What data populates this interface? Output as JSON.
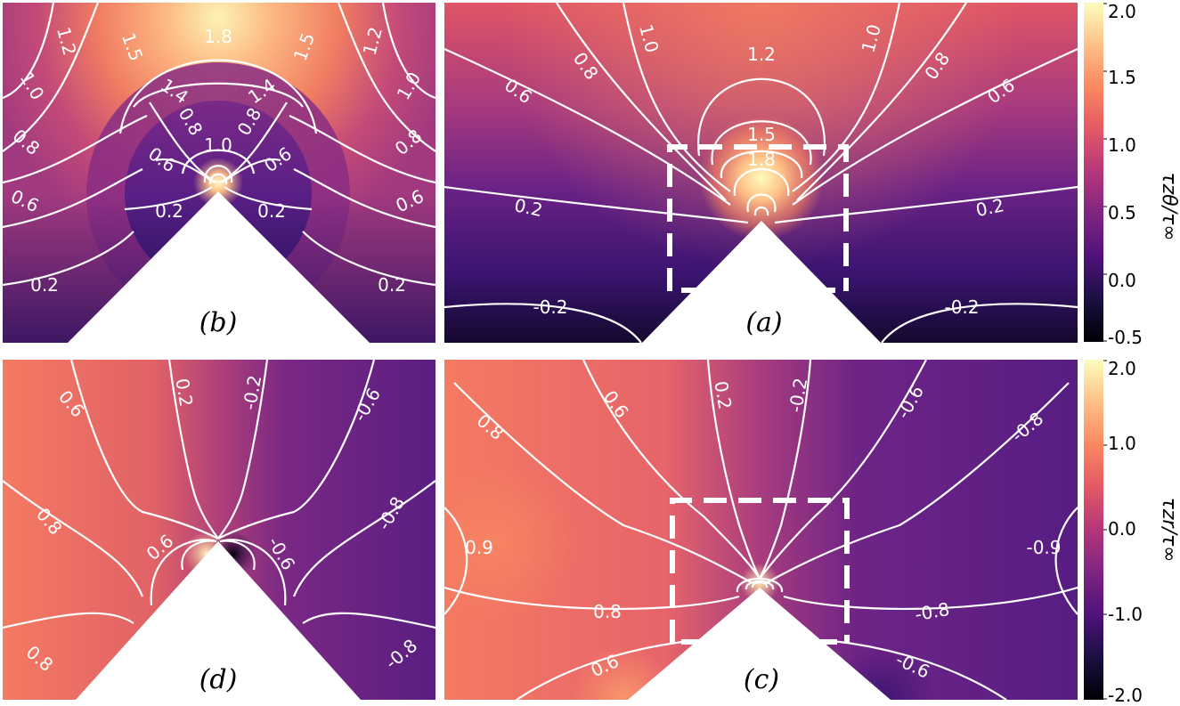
{
  "chart_data": [
    {
      "type": "heatmap",
      "panel_label": "(b)",
      "quantity": "tau_z_theta / tau_inf",
      "colormap": "magma",
      "value_range": [
        -0.5,
        2.0
      ],
      "geometry": "wedge apex, zoomed view",
      "contour_labels": [
        "1.8",
        "1.5",
        "1.5",
        "1.2",
        "1.2",
        "1.0",
        "1.0",
        "1.4",
        "1.4",
        "0.8",
        "0.8",
        "0.8",
        "0.8",
        "1.0",
        "0.6",
        "0.6",
        "0.6",
        "0.6",
        "0.2",
        "0.2",
        "0.2",
        "0.2"
      ]
    },
    {
      "type": "heatmap",
      "panel_label": "(a)",
      "quantity": "tau_z_theta / tau_inf",
      "colormap": "magma",
      "value_range": [
        -0.5,
        2.0
      ],
      "geometry": "wedge apex, full view with inset box",
      "contour_labels": [
        "1.0",
        "1.0",
        "0.8",
        "0.8",
        "0.6",
        "0.6",
        "1.2",
        "1.5",
        "1.8",
        "0.2",
        "0.2",
        "-0.2",
        "-0.2"
      ]
    },
    {
      "type": "heatmap",
      "panel_label": "(d)",
      "quantity": "tau_z_r / tau_inf",
      "colormap": "magma",
      "value_range": [
        -2.0,
        2.0
      ],
      "geometry": "wedge apex, zoomed view",
      "contour_labels": [
        "0.6",
        "0.2",
        "-0.2",
        "-0.6",
        "0.8",
        "-0.8",
        "0.6",
        "-0.6",
        "0.8",
        "-0.8"
      ]
    },
    {
      "type": "heatmap",
      "panel_label": "(c)",
      "quantity": "tau_z_r / tau_inf",
      "colormap": "magma",
      "value_range": [
        -2.0,
        2.0
      ],
      "geometry": "wedge apex, full view with inset box",
      "contour_labels": [
        "0.6",
        "0.2",
        "-0.2",
        "-0.6",
        "0.8",
        "-0.8",
        "0.9",
        "-0.9",
        "0.8",
        "-0.8",
        "0.6",
        "-0.6"
      ]
    }
  ],
  "colorbars": [
    {
      "label": "τzθ/τ∞",
      "ticks": [
        "2.0",
        "1.5",
        "1.0",
        "0.5",
        "0.0",
        "-0.5"
      ]
    },
    {
      "label": "τzr/τ∞",
      "ticks": [
        "2.0",
        "1.0",
        "0.0",
        "-1.0",
        "-2.0"
      ]
    }
  ],
  "colors": {
    "contour": "#ffffff",
    "wedge": "#ffffff",
    "magma_low": "#000004",
    "magma_high": "#fcfdbf"
  }
}
